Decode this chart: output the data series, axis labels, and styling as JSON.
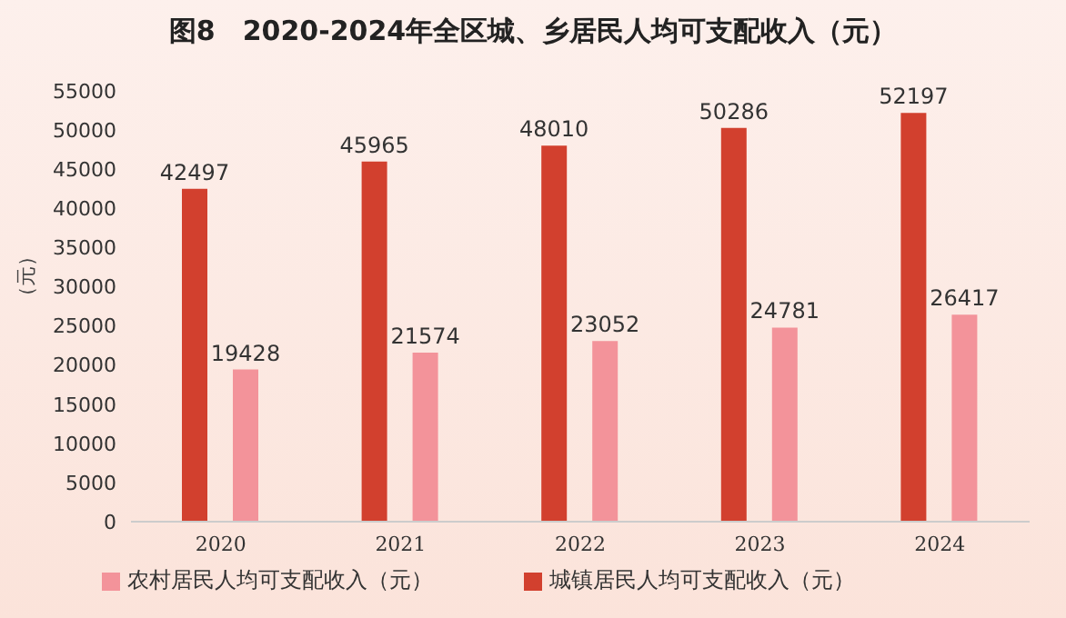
{
  "chart_data": {
    "type": "bar",
    "title": "图8　2020-2024年全区城、乡居民人均可支配收入（元）",
    "ylabel": "（元）",
    "categories": [
      "2020",
      "2021",
      "2022",
      "2023",
      "2024"
    ],
    "series": [
      {
        "name": "城镇居民人均可支配收入（元）",
        "color": "#d2402e",
        "values": [
          42497,
          45965,
          48010,
          50286,
          52197
        ]
      },
      {
        "name": "农村居民人均可支配收入（元）",
        "color": "#f3939a",
        "values": [
          19428,
          21574,
          23052,
          24781,
          26417
        ]
      }
    ],
    "ylim": [
      0,
      55000
    ],
    "yticks": [
      0,
      5000,
      10000,
      15000,
      20000,
      25000,
      30000,
      35000,
      40000,
      45000,
      50000,
      55000
    ],
    "grid": false,
    "legend": "bottom",
    "data_labels": true
  }
}
